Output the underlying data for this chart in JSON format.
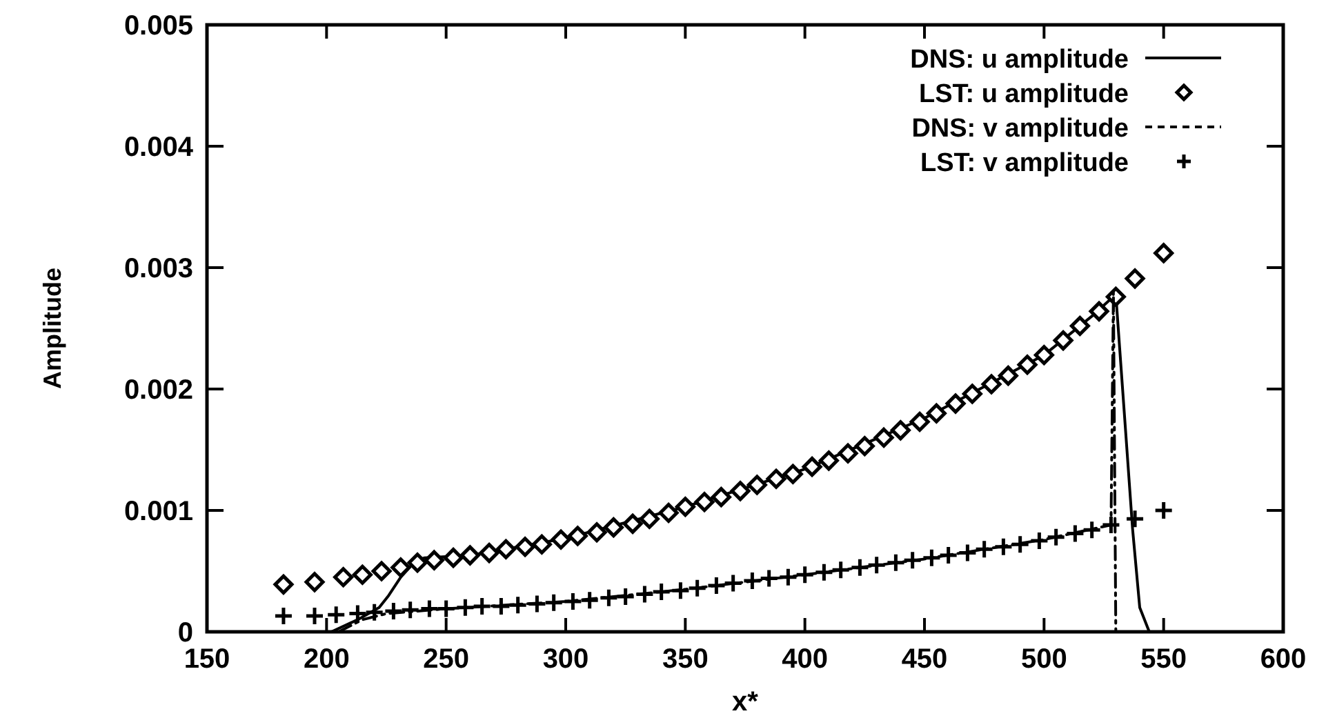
{
  "chart_data": {
    "type": "line",
    "xlabel": "x*",
    "ylabel": "Amplitude",
    "xlim": [
      150,
      600
    ],
    "xticks": [
      150,
      200,
      250,
      300,
      350,
      400,
      450,
      500,
      550,
      600
    ],
    "ylim": [
      0,
      0.005
    ],
    "yticks": [
      0,
      0.001,
      0.002,
      0.003,
      0.004,
      0.005
    ],
    "grid": false,
    "legend": "top right",
    "series": [
      {
        "name": "DNS: u amplitude",
        "color": "#000000",
        "line_style": "solid",
        "marker": "none",
        "x": [
          202,
          213,
          222,
          226,
          231,
          237,
          241,
          260,
          300,
          350,
          400,
          450,
          500,
          520,
          530,
          534,
          537,
          540,
          544,
          550
        ],
        "values": [
          0,
          0.0001,
          0.0002,
          0.0003,
          0.00045,
          0.00058,
          0.00061,
          0.00063,
          0.00077,
          0.00103,
          0.00134,
          0.00176,
          0.00228,
          0.0026,
          0.00278,
          0.00168,
          0.00085,
          0.0002,
          0,
          0
        ]
      },
      {
        "name": "LST: u amplitude",
        "type": "scatter",
        "color": "#000000",
        "marker": "diamond",
        "x": [
          182,
          195,
          207,
          215,
          223,
          231,
          238,
          245,
          253,
          260,
          268,
          275,
          283,
          290,
          298,
          305,
          313,
          320,
          328,
          335,
          343,
          350,
          358,
          365,
          373,
          380,
          388,
          395,
          403,
          410,
          418,
          425,
          433,
          440,
          448,
          455,
          463,
          470,
          478,
          485,
          493,
          500,
          508,
          515,
          523,
          530,
          538,
          550
        ],
        "values": [
          0.00039,
          0.00041,
          0.00045,
          0.00047,
          0.0005,
          0.00053,
          0.00057,
          0.00059,
          0.00061,
          0.00063,
          0.00065,
          0.00068,
          0.0007,
          0.00072,
          0.00076,
          0.00079,
          0.00082,
          0.00086,
          0.00089,
          0.00093,
          0.00098,
          0.00103,
          0.00107,
          0.00111,
          0.00116,
          0.00121,
          0.00126,
          0.0013,
          0.00136,
          0.00141,
          0.00147,
          0.00153,
          0.0016,
          0.00166,
          0.00173,
          0.0018,
          0.00188,
          0.00196,
          0.00204,
          0.00211,
          0.0022,
          0.00228,
          0.0024,
          0.00252,
          0.00264,
          0.00276,
          0.00291,
          0.00312
        ]
      },
      {
        "name": "DNS: v amplitude",
        "color": "#000000",
        "line_style": "dashed",
        "marker": "none",
        "x": [
          205,
          215,
          225,
          250,
          300,
          350,
          400,
          450,
          500,
          528,
          529,
          530
        ],
        "values": [
          0,
          0.0001,
          0.00015,
          0.00019,
          0.00025,
          0.00035,
          0.00047,
          0.0006,
          0.00076,
          0.00088,
          0.0028,
          0
        ]
      },
      {
        "name": "LST: v amplitude",
        "type": "scatter",
        "color": "#000000",
        "marker": "cross",
        "x": [
          182,
          195,
          204,
          213,
          220,
          228,
          235,
          243,
          250,
          258,
          265,
          273,
          280,
          288,
          295,
          303,
          310,
          318,
          325,
          333,
          340,
          348,
          355,
          363,
          370,
          378,
          385,
          393,
          400,
          408,
          415,
          423,
          430,
          438,
          445,
          453,
          460,
          468,
          475,
          483,
          490,
          498,
          505,
          513,
          520,
          528,
          538,
          550
        ],
        "values": [
          0.00013,
          0.00013,
          0.00014,
          0.00015,
          0.00016,
          0.00017,
          0.00018,
          0.00019,
          0.00019,
          0.0002,
          0.00021,
          0.00021,
          0.00022,
          0.00023,
          0.00024,
          0.00025,
          0.00026,
          0.00028,
          0.00029,
          0.00031,
          0.00033,
          0.00034,
          0.00036,
          0.00038,
          0.0004,
          0.00042,
          0.00044,
          0.00045,
          0.00047,
          0.00049,
          0.00051,
          0.00053,
          0.00055,
          0.00057,
          0.00059,
          0.00061,
          0.00063,
          0.00065,
          0.00068,
          0.0007,
          0.00072,
          0.00075,
          0.00078,
          0.00081,
          0.00084,
          0.00088,
          0.00093,
          0.001
        ]
      }
    ]
  }
}
